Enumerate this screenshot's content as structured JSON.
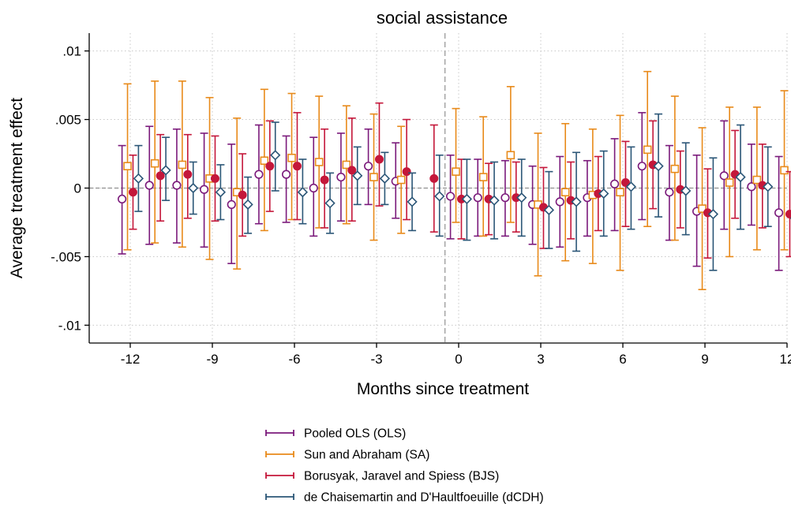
{
  "chart_data": {
    "type": "scatter",
    "title": "social assistance",
    "xlabel": "Months since treatment",
    "ylabel": "Average treatment effect",
    "xlim": [
      -13.5,
      12
    ],
    "ylim": [
      -0.0113,
      0.0113
    ],
    "x_ticks": [
      -12,
      -9,
      -6,
      -3,
      0,
      3,
      6,
      9,
      12
    ],
    "x_tick_labels": [
      "-12",
      "-9",
      "-6",
      "-3",
      "0",
      "3",
      "6",
      "9",
      "12"
    ],
    "y_ticks": [
      0.01,
      0.005,
      0,
      -0.005,
      -0.01
    ],
    "y_tick_labels": [
      ".01",
      ".005",
      "0",
      "-.005",
      "-.01"
    ],
    "reference_line_x": -0.5,
    "reference_line_y": 0,
    "grid": true,
    "legend_position": "bottom",
    "series": [
      {
        "name": "Pooled OLS (OLS)",
        "color": "#7b1a7b",
        "marker": "hollow-circle",
        "offset": -0.3,
        "x": [
          -12,
          -11,
          -10,
          -9,
          -8,
          -7,
          -6,
          -5,
          -4,
          -3,
          -2,
          0,
          1,
          2,
          3,
          4,
          5,
          6,
          7,
          8,
          9,
          10,
          11,
          12
        ],
        "estimate": [
          -0.0008,
          0.0002,
          0.0002,
          -0.0001,
          -0.0012,
          0.001,
          0.001,
          0,
          0.0008,
          0.0016,
          0.0005,
          -0.0006,
          -0.0007,
          -0.0007,
          -0.0012,
          -0.001,
          -0.0007,
          0.0003,
          0.0016,
          -0.0003,
          -0.0017,
          0.0009,
          0.0001,
          -0.0018
        ],
        "lower": [
          -0.0048,
          -0.0041,
          -0.004,
          -0.0043,
          -0.0055,
          -0.0026,
          -0.0025,
          -0.0035,
          -0.0024,
          -0.0012,
          -0.0022,
          -0.0037,
          -0.0035,
          -0.0035,
          -0.0041,
          -0.0043,
          -0.0035,
          -0.0031,
          -0.0023,
          -0.0038,
          -0.0057,
          -0.003,
          -0.0027,
          -0.006
        ],
        "upper": [
          0.0031,
          0.0045,
          0.0043,
          0.004,
          0.0032,
          0.0046,
          0.0038,
          0.0037,
          0.004,
          0.0043,
          0.0033,
          0.0024,
          0.0021,
          0.002,
          0.0016,
          0.0023,
          0.002,
          0.0036,
          0.0055,
          0.0031,
          0.0024,
          0.0049,
          0.0032,
          0.0023
        ]
      },
      {
        "name": "Sun and Abraham (SA)",
        "color": "#e88a1a",
        "marker": "hollow-square",
        "offset": -0.1,
        "x": [
          -12,
          -11,
          -10,
          -9,
          -8,
          -7,
          -6,
          -5,
          -4,
          -3,
          -2,
          0,
          1,
          2,
          3,
          4,
          5,
          6,
          7,
          8,
          9,
          10,
          11,
          12
        ],
        "estimate": [
          0.0016,
          0.0018,
          0.0017,
          0.0007,
          -0.0003,
          0.002,
          0.0022,
          0.0019,
          0.0017,
          0.0008,
          0.0006,
          0.0012,
          0.0008,
          0.0024,
          -0.0012,
          -0.0003,
          -0.0005,
          -0.0003,
          0.0028,
          0.0014,
          -0.0015,
          0.0004,
          0.0006,
          0.0013
        ],
        "lower": [
          -0.0045,
          -0.004,
          -0.0043,
          -0.0052,
          -0.0059,
          -0.0031,
          -0.0023,
          -0.0029,
          -0.0026,
          -0.0038,
          -0.0033,
          -0.0025,
          -0.0035,
          -0.0025,
          -0.0064,
          -0.0053,
          -0.0055,
          -0.006,
          -0.0028,
          -0.0038,
          -0.0074,
          -0.005,
          -0.0045,
          -0.0045
        ],
        "upper": [
          0.0076,
          0.0078,
          0.0078,
          0.0066,
          0.0051,
          0.0072,
          0.0069,
          0.0067,
          0.006,
          0.0054,
          0.0045,
          0.0058,
          0.0052,
          0.0074,
          0.004,
          0.0047,
          0.0043,
          0.0053,
          0.0085,
          0.0067,
          0.0044,
          0.0059,
          0.0059,
          0.0071
        ]
      },
      {
        "name": "Borusyak, Jaravel and Spiess (BJS)",
        "color": "#c4173a",
        "marker": "filled-circle",
        "offset": 0.1,
        "x": [
          -12,
          -11,
          -10,
          -9,
          -8,
          -7,
          -6,
          -5,
          -4,
          -3,
          -2,
          -1,
          0,
          1,
          2,
          3,
          4,
          5,
          6,
          7,
          8,
          9,
          10,
          11,
          12
        ],
        "estimate": [
          -0.0003,
          0.0009,
          0.001,
          0.0007,
          -0.0005,
          0.0016,
          0.0016,
          0.0006,
          0.0013,
          0.0021,
          0.0012,
          0.0007,
          -0.0008,
          -0.0008,
          -0.0007,
          -0.0014,
          -0.0009,
          -0.0004,
          0.0004,
          0.0017,
          -0.0001,
          -0.0018,
          0.001,
          0.0002,
          -0.0019
        ],
        "lower": [
          -0.003,
          -0.0024,
          -0.0022,
          -0.0024,
          -0.0035,
          -0.0017,
          -0.0023,
          -0.0029,
          -0.0024,
          -0.0013,
          -0.0023,
          -0.0032,
          -0.0037,
          -0.0034,
          -0.0032,
          -0.0044,
          -0.0037,
          -0.0031,
          -0.0028,
          -0.0015,
          -0.0029,
          -0.0051,
          -0.0022,
          -0.0029,
          -0.005
        ],
        "upper": [
          0.0024,
          0.0039,
          0.0039,
          0.0038,
          0.0025,
          0.0049,
          0.0055,
          0.0043,
          0.0051,
          0.0062,
          0.005,
          0.0046,
          0.0021,
          0.0018,
          0.0019,
          0.0015,
          0.0019,
          0.0023,
          0.0034,
          0.0049,
          0.0027,
          0.0014,
          0.0042,
          0.0032,
          0.0012
        ]
      },
      {
        "name": "de Chaisemartin and D'Haultfoeuille (dCDH)",
        "color": "#2b5677",
        "marker": "hollow-diamond",
        "offset": 0.3,
        "x": [
          -12,
          -11,
          -10,
          -9,
          -8,
          -7,
          -6,
          -5,
          -4,
          -3,
          -2,
          -1,
          0,
          1,
          2,
          3,
          4,
          5,
          6,
          7,
          8,
          9,
          10,
          11,
          12
        ],
        "estimate": [
          0.0007,
          0.0013,
          0,
          -0.0003,
          -0.0012,
          0.0024,
          -0.0003,
          -0.0011,
          0.0009,
          0.0007,
          -0.001,
          -0.0006,
          -0.0008,
          -0.0009,
          -0.0007,
          -0.0016,
          -0.001,
          -0.0004,
          0.0001,
          0.0016,
          -0.0002,
          -0.0019,
          0.0008,
          0.0001,
          -0.0022
        ],
        "lower": [
          -0.0017,
          -0.0009,
          -0.0019,
          -0.0023,
          -0.0033,
          -0.0002,
          -0.0026,
          -0.0033,
          -0.0012,
          -0.0012,
          -0.0031,
          -0.0035,
          -0.0038,
          -0.0037,
          -0.0035,
          -0.0044,
          -0.0046,
          -0.0035,
          -0.003,
          -0.0021,
          -0.0034,
          -0.006,
          -0.003,
          -0.0028,
          -0.0064
        ],
        "upper": [
          0.0031,
          0.0037,
          0.0019,
          0.0017,
          0.0008,
          0.0048,
          0.0021,
          0.0011,
          0.003,
          0.0026,
          0.0011,
          0.0024,
          0.0021,
          0.0019,
          0.0021,
          0.0012,
          0.0026,
          0.0027,
          0.003,
          0.0054,
          0.0033,
          0.0022,
          0.0046,
          0.003,
          0.0021
        ]
      }
    ]
  }
}
